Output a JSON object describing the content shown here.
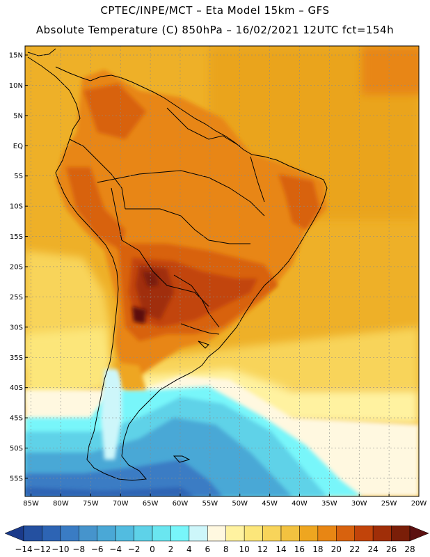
{
  "header": {
    "line1": "CPTEC/INPE/MCT –  Eta Model 15km – GFS",
    "line2": "Absolute Temperature (C) 850hPa – 16/02/2021 12UTC fct=154h"
  },
  "axes": {
    "lat_labels": [
      "15N",
      "10N",
      "5N",
      "EQ",
      "5S",
      "10S",
      "15S",
      "20S",
      "25S",
      "30S",
      "35S",
      "40S",
      "45S",
      "50S",
      "55S"
    ],
    "lat_values": [
      15,
      10,
      5,
      0,
      -5,
      -10,
      -15,
      -20,
      -25,
      -30,
      -35,
      -40,
      -45,
      -50,
      -55
    ],
    "lon_labels": [
      "85W",
      "80W",
      "75W",
      "70W",
      "65W",
      "60W",
      "55W",
      "50W",
      "45W",
      "40W",
      "35W",
      "30W",
      "25W",
      "20W"
    ],
    "lon_values": [
      -85,
      -80,
      -75,
      -70,
      -65,
      -60,
      -55,
      -50,
      -45,
      -40,
      -35,
      -30,
      -25,
      -20
    ],
    "lat_range": [
      -58,
      16.5
    ],
    "lon_range": [
      -86,
      -20
    ]
  },
  "colorbar": {
    "tick_labels": [
      "-14",
      "-12",
      "-10",
      "-8",
      "-6",
      "-4",
      "-2",
      "0",
      "2",
      "4",
      "6",
      "8",
      "10",
      "12",
      "14",
      "16",
      "18",
      "20",
      "22",
      "24",
      "26",
      "28"
    ],
    "colors": [
      "#1a3a8a",
      "#2450a0",
      "#2d64b4",
      "#3a7cc4",
      "#4694cc",
      "#4aa8d6",
      "#52bce0",
      "#5ed2e8",
      "#6ae6f0",
      "#78f6fa",
      "#cdf6fa",
      "#fff8e0",
      "#fff2a0",
      "#fce67a",
      "#f8d45a",
      "#f2c240",
      "#eea620",
      "#e88614",
      "#d8620e",
      "#c2440a",
      "#a02e08",
      "#7a1e08",
      "#5c1010"
    ]
  }
}
